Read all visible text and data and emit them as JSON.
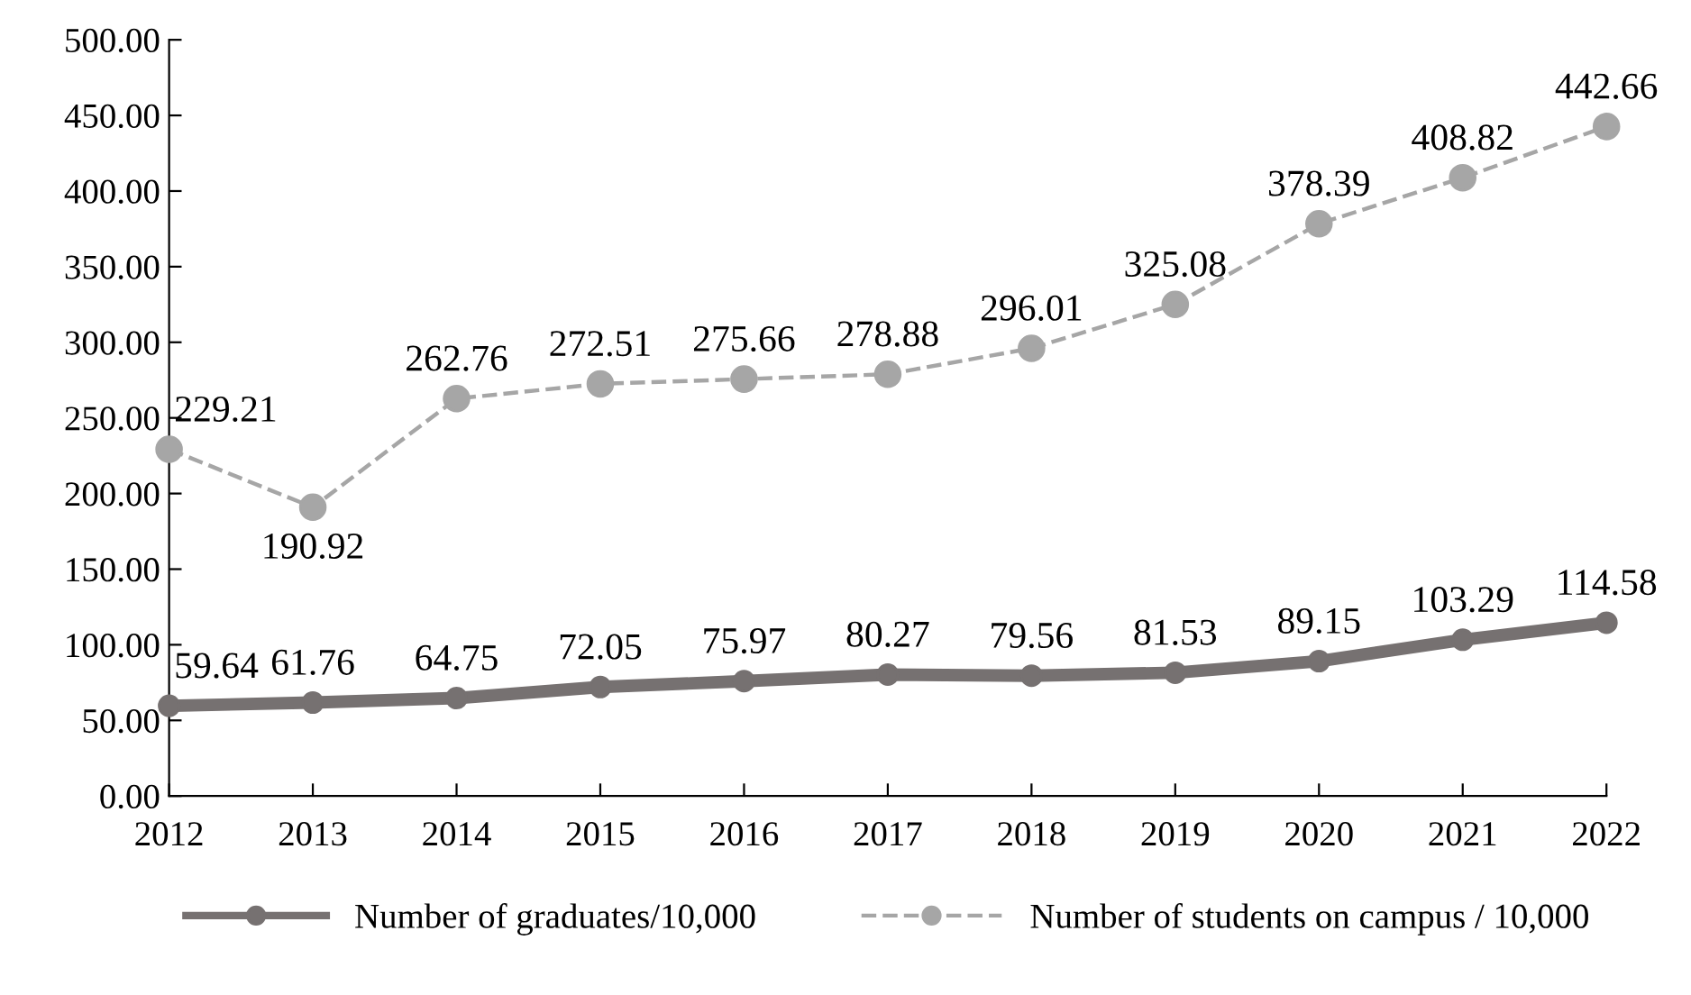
{
  "chart_data": {
    "type": "line",
    "categories": [
      "2012",
      "2013",
      "2014",
      "2015",
      "2016",
      "2017",
      "2018",
      "2019",
      "2020",
      "2021",
      "2022"
    ],
    "series": [
      {
        "name": "Number of graduates/10,000",
        "color": "#767171",
        "values": [
          59.64,
          61.76,
          64.75,
          72.05,
          75.97,
          80.27,
          79.56,
          81.53,
          89.15,
          103.29,
          114.58
        ],
        "line_style": "solid",
        "marker": "circle"
      },
      {
        "name": "Number of students on campus / 10,000",
        "color": "#a6a6a6",
        "values": [
          229.21,
          190.92,
          262.76,
          272.51,
          275.66,
          278.88,
          296.01,
          325.08,
          378.39,
          408.82,
          442.66
        ],
        "line_style": "dashed",
        "marker": "circle"
      }
    ],
    "ylim": [
      0,
      500
    ],
    "yticks": [
      {
        "value": 0,
        "label": "0.00"
      },
      {
        "value": 50,
        "label": "50.00"
      },
      {
        "value": 100,
        "label": "100.00"
      },
      {
        "value": 150,
        "label": "150.00"
      },
      {
        "value": 200,
        "label": "200.00"
      },
      {
        "value": 250,
        "label": "250.00"
      },
      {
        "value": 300,
        "label": "300.00"
      },
      {
        "value": 350,
        "label": "350.00"
      },
      {
        "value": 400,
        "label": "400.00"
      },
      {
        "value": 450,
        "label": "450.00"
      },
      {
        "value": 500,
        "label": "500.00"
      }
    ],
    "data_labels": true,
    "grid": false,
    "legend": "bottom"
  }
}
